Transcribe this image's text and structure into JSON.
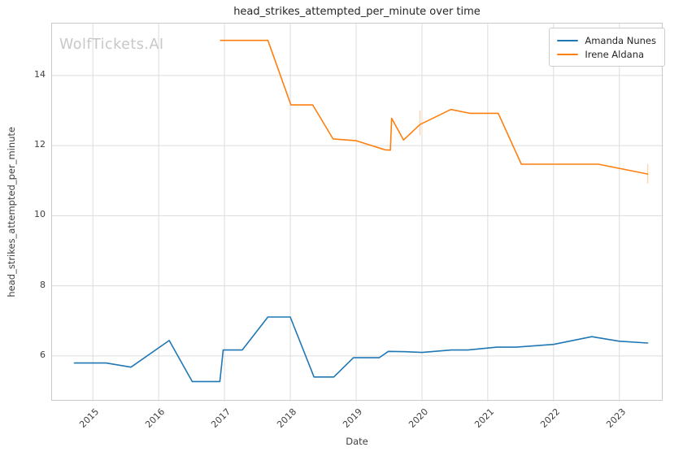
{
  "watermark": "WolfTickets.AI",
  "chart_data": {
    "type": "line",
    "title": "head_strikes_attempted_per_minute over time",
    "xlabel": "Date",
    "ylabel": "head_strikes_attempted_per_minute",
    "xlim": [
      2014.38,
      2023.67
    ],
    "ylim": [
      4.7,
      15.48
    ],
    "xticks": [
      2015,
      2016,
      2017,
      2018,
      2019,
      2020,
      2021,
      2022,
      2023
    ],
    "yticks": [
      6,
      8,
      10,
      12,
      14
    ],
    "grid": true,
    "legend_position": "upper right",
    "grid_color": "#dcdcdc",
    "series": [
      {
        "name": "Amanda Nunes",
        "color": "#1f77b4",
        "points": [
          [
            2014.72,
            5.8
          ],
          [
            2015.2,
            5.8
          ],
          [
            2015.58,
            5.68
          ],
          [
            2016.16,
            6.44
          ],
          [
            2016.51,
            5.27
          ],
          [
            2016.93,
            5.27
          ],
          [
            2016.98,
            6.17
          ],
          [
            2017.27,
            6.17
          ],
          [
            2017.66,
            7.11
          ],
          [
            2018.0,
            7.11
          ],
          [
            2018.36,
            5.4
          ],
          [
            2018.66,
            5.4
          ],
          [
            2018.96,
            5.95
          ],
          [
            2019.35,
            5.95
          ],
          [
            2019.49,
            6.13
          ],
          [
            2019.76,
            6.12
          ],
          [
            2020.0,
            6.1
          ],
          [
            2020.45,
            6.17
          ],
          [
            2020.7,
            6.17
          ],
          [
            2021.14,
            6.25
          ],
          [
            2021.43,
            6.25
          ],
          [
            2022.0,
            6.33
          ],
          [
            2022.58,
            6.55
          ],
          [
            2023.0,
            6.42
          ],
          [
            2023.43,
            6.37
          ]
        ],
        "error_bars": []
      },
      {
        "name": "Irene Aldana",
        "color": "#ff7f0e",
        "points": [
          [
            2016.94,
            15.0
          ],
          [
            2017.66,
            15.0
          ],
          [
            2018.01,
            13.16
          ],
          [
            2018.34,
            13.16
          ],
          [
            2018.65,
            12.19
          ],
          [
            2019.0,
            12.14
          ],
          [
            2019.44,
            11.88
          ],
          [
            2019.52,
            11.87
          ],
          [
            2019.54,
            12.78
          ],
          [
            2019.72,
            12.16
          ],
          [
            2019.97,
            12.6
          ],
          [
            2020.44,
            13.03
          ],
          [
            2020.73,
            12.92
          ],
          [
            2021.16,
            12.92
          ],
          [
            2021.51,
            11.47
          ],
          [
            2022.68,
            11.47
          ],
          [
            2023.43,
            11.19
          ]
        ],
        "error_bars": [
          {
            "x": 2019.97,
            "low": 12.3,
            "high": 13.0
          },
          {
            "x": 2023.43,
            "low": 10.92,
            "high": 11.47
          }
        ]
      }
    ]
  }
}
